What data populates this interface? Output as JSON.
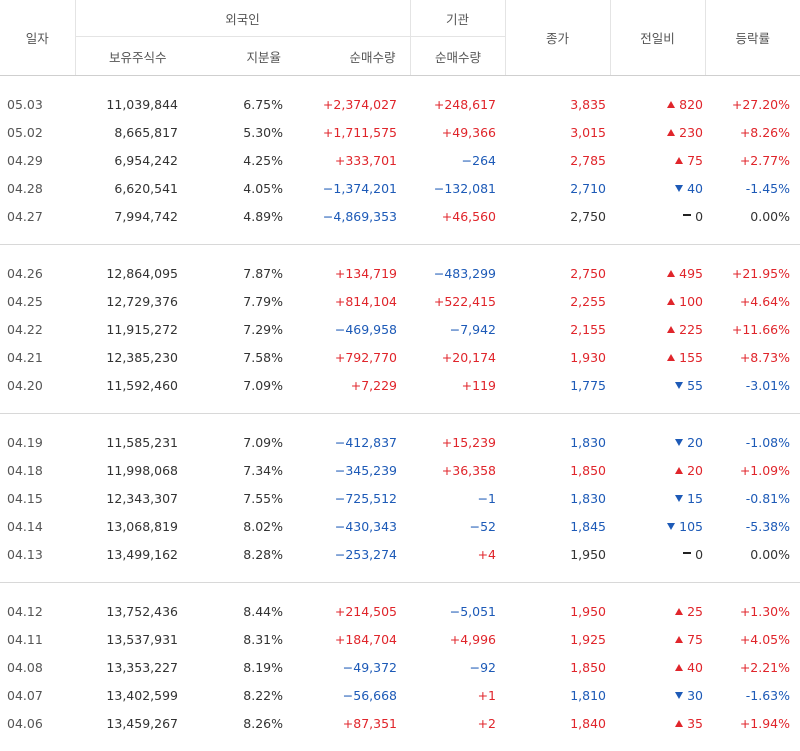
{
  "header": {
    "date": "일자",
    "foreign": "외국인",
    "institution": "기관",
    "close": "종가",
    "diff": "전일비",
    "change": "등락률",
    "holdings": "보유주식수",
    "ratio": "지분율",
    "foreign_net": "순매수량",
    "inst_net": "순매수량"
  },
  "colors": {
    "up": "#e0252b",
    "down": "#1d5ab7",
    "flat": "#333333"
  },
  "blocks": [
    [
      {
        "date": "05.03",
        "hold": "11,039,844",
        "rate": "6.75%",
        "fnet": "+2,374,027",
        "fdir": "up",
        "inet": "+248,617",
        "idir": "up",
        "close": "3,835",
        "cdir": "up",
        "diff": "820",
        "ddir": "up",
        "pct": "+27.20%",
        "pdir": "up"
      },
      {
        "date": "05.02",
        "hold": "8,665,817",
        "rate": "5.30%",
        "fnet": "+1,711,575",
        "fdir": "up",
        "inet": "+49,366",
        "idir": "up",
        "close": "3,015",
        "cdir": "up",
        "diff": "230",
        "ddir": "up",
        "pct": "+8.26%",
        "pdir": "up"
      },
      {
        "date": "04.29",
        "hold": "6,954,242",
        "rate": "4.25%",
        "fnet": "+333,701",
        "fdir": "up",
        "inet": "−264",
        "idir": "down",
        "close": "2,785",
        "cdir": "up",
        "diff": "75",
        "ddir": "up",
        "pct": "+2.77%",
        "pdir": "up"
      },
      {
        "date": "04.28",
        "hold": "6,620,541",
        "rate": "4.05%",
        "fnet": "−1,374,201",
        "fdir": "down",
        "inet": "−132,081",
        "idir": "down",
        "close": "2,710",
        "cdir": "down",
        "diff": "40",
        "ddir": "down",
        "pct": "-1.45%",
        "pdir": "down"
      },
      {
        "date": "04.27",
        "hold": "7,994,742",
        "rate": "4.89%",
        "fnet": "−4,869,353",
        "fdir": "down",
        "inet": "+46,560",
        "idir": "up",
        "close": "2,750",
        "cdir": "flat",
        "diff": "0",
        "ddir": "flat",
        "pct": "0.00%",
        "pdir": "flat"
      }
    ],
    [
      {
        "date": "04.26",
        "hold": "12,864,095",
        "rate": "7.87%",
        "fnet": "+134,719",
        "fdir": "up",
        "inet": "−483,299",
        "idir": "down",
        "close": "2,750",
        "cdir": "up",
        "diff": "495",
        "ddir": "up",
        "pct": "+21.95%",
        "pdir": "up"
      },
      {
        "date": "04.25",
        "hold": "12,729,376",
        "rate": "7.79%",
        "fnet": "+814,104",
        "fdir": "up",
        "inet": "+522,415",
        "idir": "up",
        "close": "2,255",
        "cdir": "up",
        "diff": "100",
        "ddir": "up",
        "pct": "+4.64%",
        "pdir": "up"
      },
      {
        "date": "04.22",
        "hold": "11,915,272",
        "rate": "7.29%",
        "fnet": "−469,958",
        "fdir": "down",
        "inet": "−7,942",
        "idir": "down",
        "close": "2,155",
        "cdir": "up",
        "diff": "225",
        "ddir": "up",
        "pct": "+11.66%",
        "pdir": "up"
      },
      {
        "date": "04.21",
        "hold": "12,385,230",
        "rate": "7.58%",
        "fnet": "+792,770",
        "fdir": "up",
        "inet": "+20,174",
        "idir": "up",
        "close": "1,930",
        "cdir": "up",
        "diff": "155",
        "ddir": "up",
        "pct": "+8.73%",
        "pdir": "up"
      },
      {
        "date": "04.20",
        "hold": "11,592,460",
        "rate": "7.09%",
        "fnet": "+7,229",
        "fdir": "up",
        "inet": "+119",
        "idir": "up",
        "close": "1,775",
        "cdir": "down",
        "diff": "55",
        "ddir": "down",
        "pct": "-3.01%",
        "pdir": "down"
      }
    ],
    [
      {
        "date": "04.19",
        "hold": "11,585,231",
        "rate": "7.09%",
        "fnet": "−412,837",
        "fdir": "down",
        "inet": "+15,239",
        "idir": "up",
        "close": "1,830",
        "cdir": "down",
        "diff": "20",
        "ddir": "down",
        "pct": "-1.08%",
        "pdir": "down"
      },
      {
        "date": "04.18",
        "hold": "11,998,068",
        "rate": "7.34%",
        "fnet": "−345,239",
        "fdir": "down",
        "inet": "+36,358",
        "idir": "up",
        "close": "1,850",
        "cdir": "up",
        "diff": "20",
        "ddir": "up",
        "pct": "+1.09%",
        "pdir": "up"
      },
      {
        "date": "04.15",
        "hold": "12,343,307",
        "rate": "7.55%",
        "fnet": "−725,512",
        "fdir": "down",
        "inet": "−1",
        "idir": "down",
        "close": "1,830",
        "cdir": "down",
        "diff": "15",
        "ddir": "down",
        "pct": "-0.81%",
        "pdir": "down"
      },
      {
        "date": "04.14",
        "hold": "13,068,819",
        "rate": "8.02%",
        "fnet": "−430,343",
        "fdir": "down",
        "inet": "−52",
        "idir": "down",
        "close": "1,845",
        "cdir": "down",
        "diff": "105",
        "ddir": "down",
        "pct": "-5.38%",
        "pdir": "down"
      },
      {
        "date": "04.13",
        "hold": "13,499,162",
        "rate": "8.28%",
        "fnet": "−253,274",
        "fdir": "down",
        "inet": "+4",
        "idir": "up",
        "close": "1,950",
        "cdir": "flat",
        "diff": "0",
        "ddir": "flat",
        "pct": "0.00%",
        "pdir": "flat"
      }
    ],
    [
      {
        "date": "04.12",
        "hold": "13,752,436",
        "rate": "8.44%",
        "fnet": "+214,505",
        "fdir": "up",
        "inet": "−5,051",
        "idir": "down",
        "close": "1,950",
        "cdir": "up",
        "diff": "25",
        "ddir": "up",
        "pct": "+1.30%",
        "pdir": "up"
      },
      {
        "date": "04.11",
        "hold": "13,537,931",
        "rate": "8.31%",
        "fnet": "+184,704",
        "fdir": "up",
        "inet": "+4,996",
        "idir": "up",
        "close": "1,925",
        "cdir": "up",
        "diff": "75",
        "ddir": "up",
        "pct": "+4.05%",
        "pdir": "up"
      },
      {
        "date": "04.08",
        "hold": "13,353,227",
        "rate": "8.19%",
        "fnet": "−49,372",
        "fdir": "down",
        "inet": "−92",
        "idir": "down",
        "close": "1,850",
        "cdir": "up",
        "diff": "40",
        "ddir": "up",
        "pct": "+2.21%",
        "pdir": "up"
      },
      {
        "date": "04.07",
        "hold": "13,402,599",
        "rate": "8.22%",
        "fnet": "−56,668",
        "fdir": "down",
        "inet": "+1",
        "idir": "up",
        "close": "1,810",
        "cdir": "down",
        "diff": "30",
        "ddir": "down",
        "pct": "-1.63%",
        "pdir": "down"
      },
      {
        "date": "04.06",
        "hold": "13,459,267",
        "rate": "8.26%",
        "fnet": "+87,351",
        "fdir": "up",
        "inet": "+2",
        "idir": "up",
        "close": "1,840",
        "cdir": "up",
        "diff": "35",
        "ddir": "up",
        "pct": "+1.94%",
        "pdir": "up"
      }
    ]
  ]
}
